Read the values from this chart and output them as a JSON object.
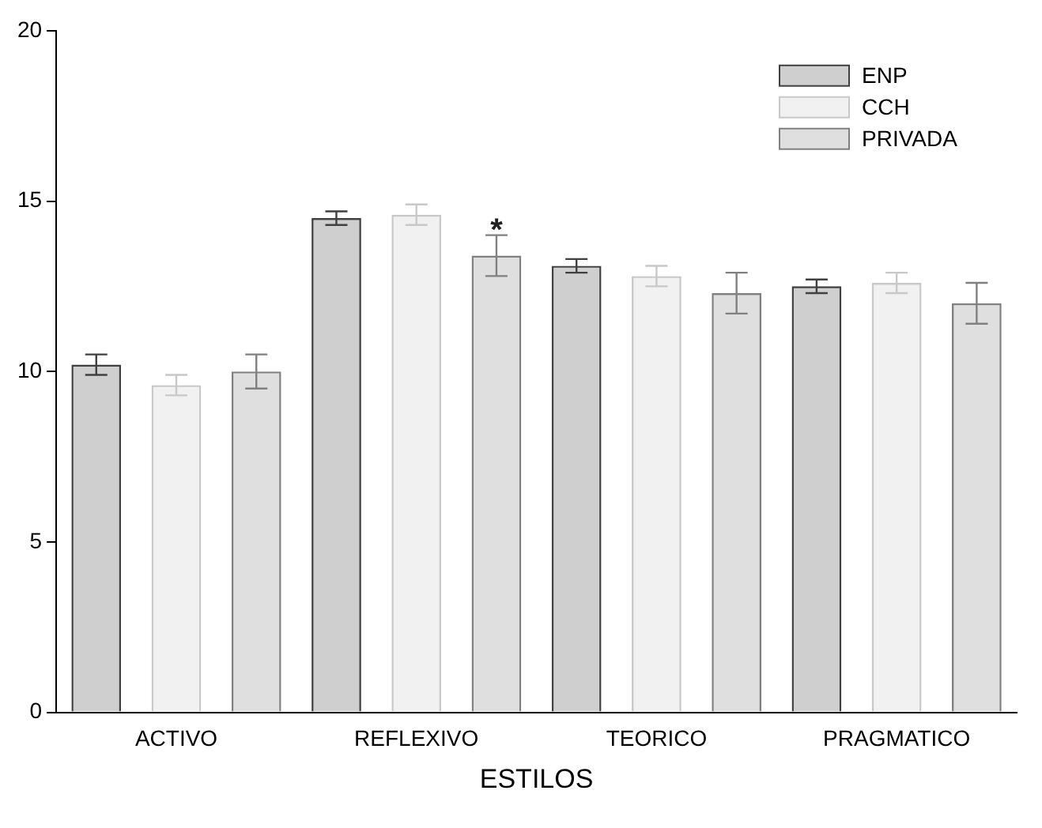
{
  "chart_data": {
    "type": "bar",
    "xlabel": "ESTILOS",
    "categories": [
      "ACTIVO",
      "REFLEXIVO",
      "TEORICO",
      "PRAGMATICO"
    ],
    "series": [
      {
        "name": "ENP",
        "color": "#404040",
        "values": [
          10.2,
          14.5,
          13.1,
          12.5
        ],
        "errors": [
          0.3,
          0.2,
          0.2,
          0.2
        ]
      },
      {
        "name": "CCH",
        "color": "#c8c8c8",
        "values": [
          9.6,
          14.6,
          12.8,
          12.6
        ],
        "errors": [
          0.3,
          0.3,
          0.3,
          0.3
        ]
      },
      {
        "name": "PRIVADA",
        "color": "#808080",
        "values": [
          10.0,
          13.4,
          12.3,
          12.0
        ],
        "errors": [
          0.5,
          0.6,
          0.6,
          0.6
        ]
      }
    ],
    "ylim": [
      0,
      20
    ],
    "yticks": [
      0,
      5,
      10,
      15,
      20
    ],
    "grid": false,
    "legend": "top right",
    "annotations": [
      {
        "text": "*",
        "x": "REFLEXIVO",
        "y": 14.3
      }
    ]
  }
}
